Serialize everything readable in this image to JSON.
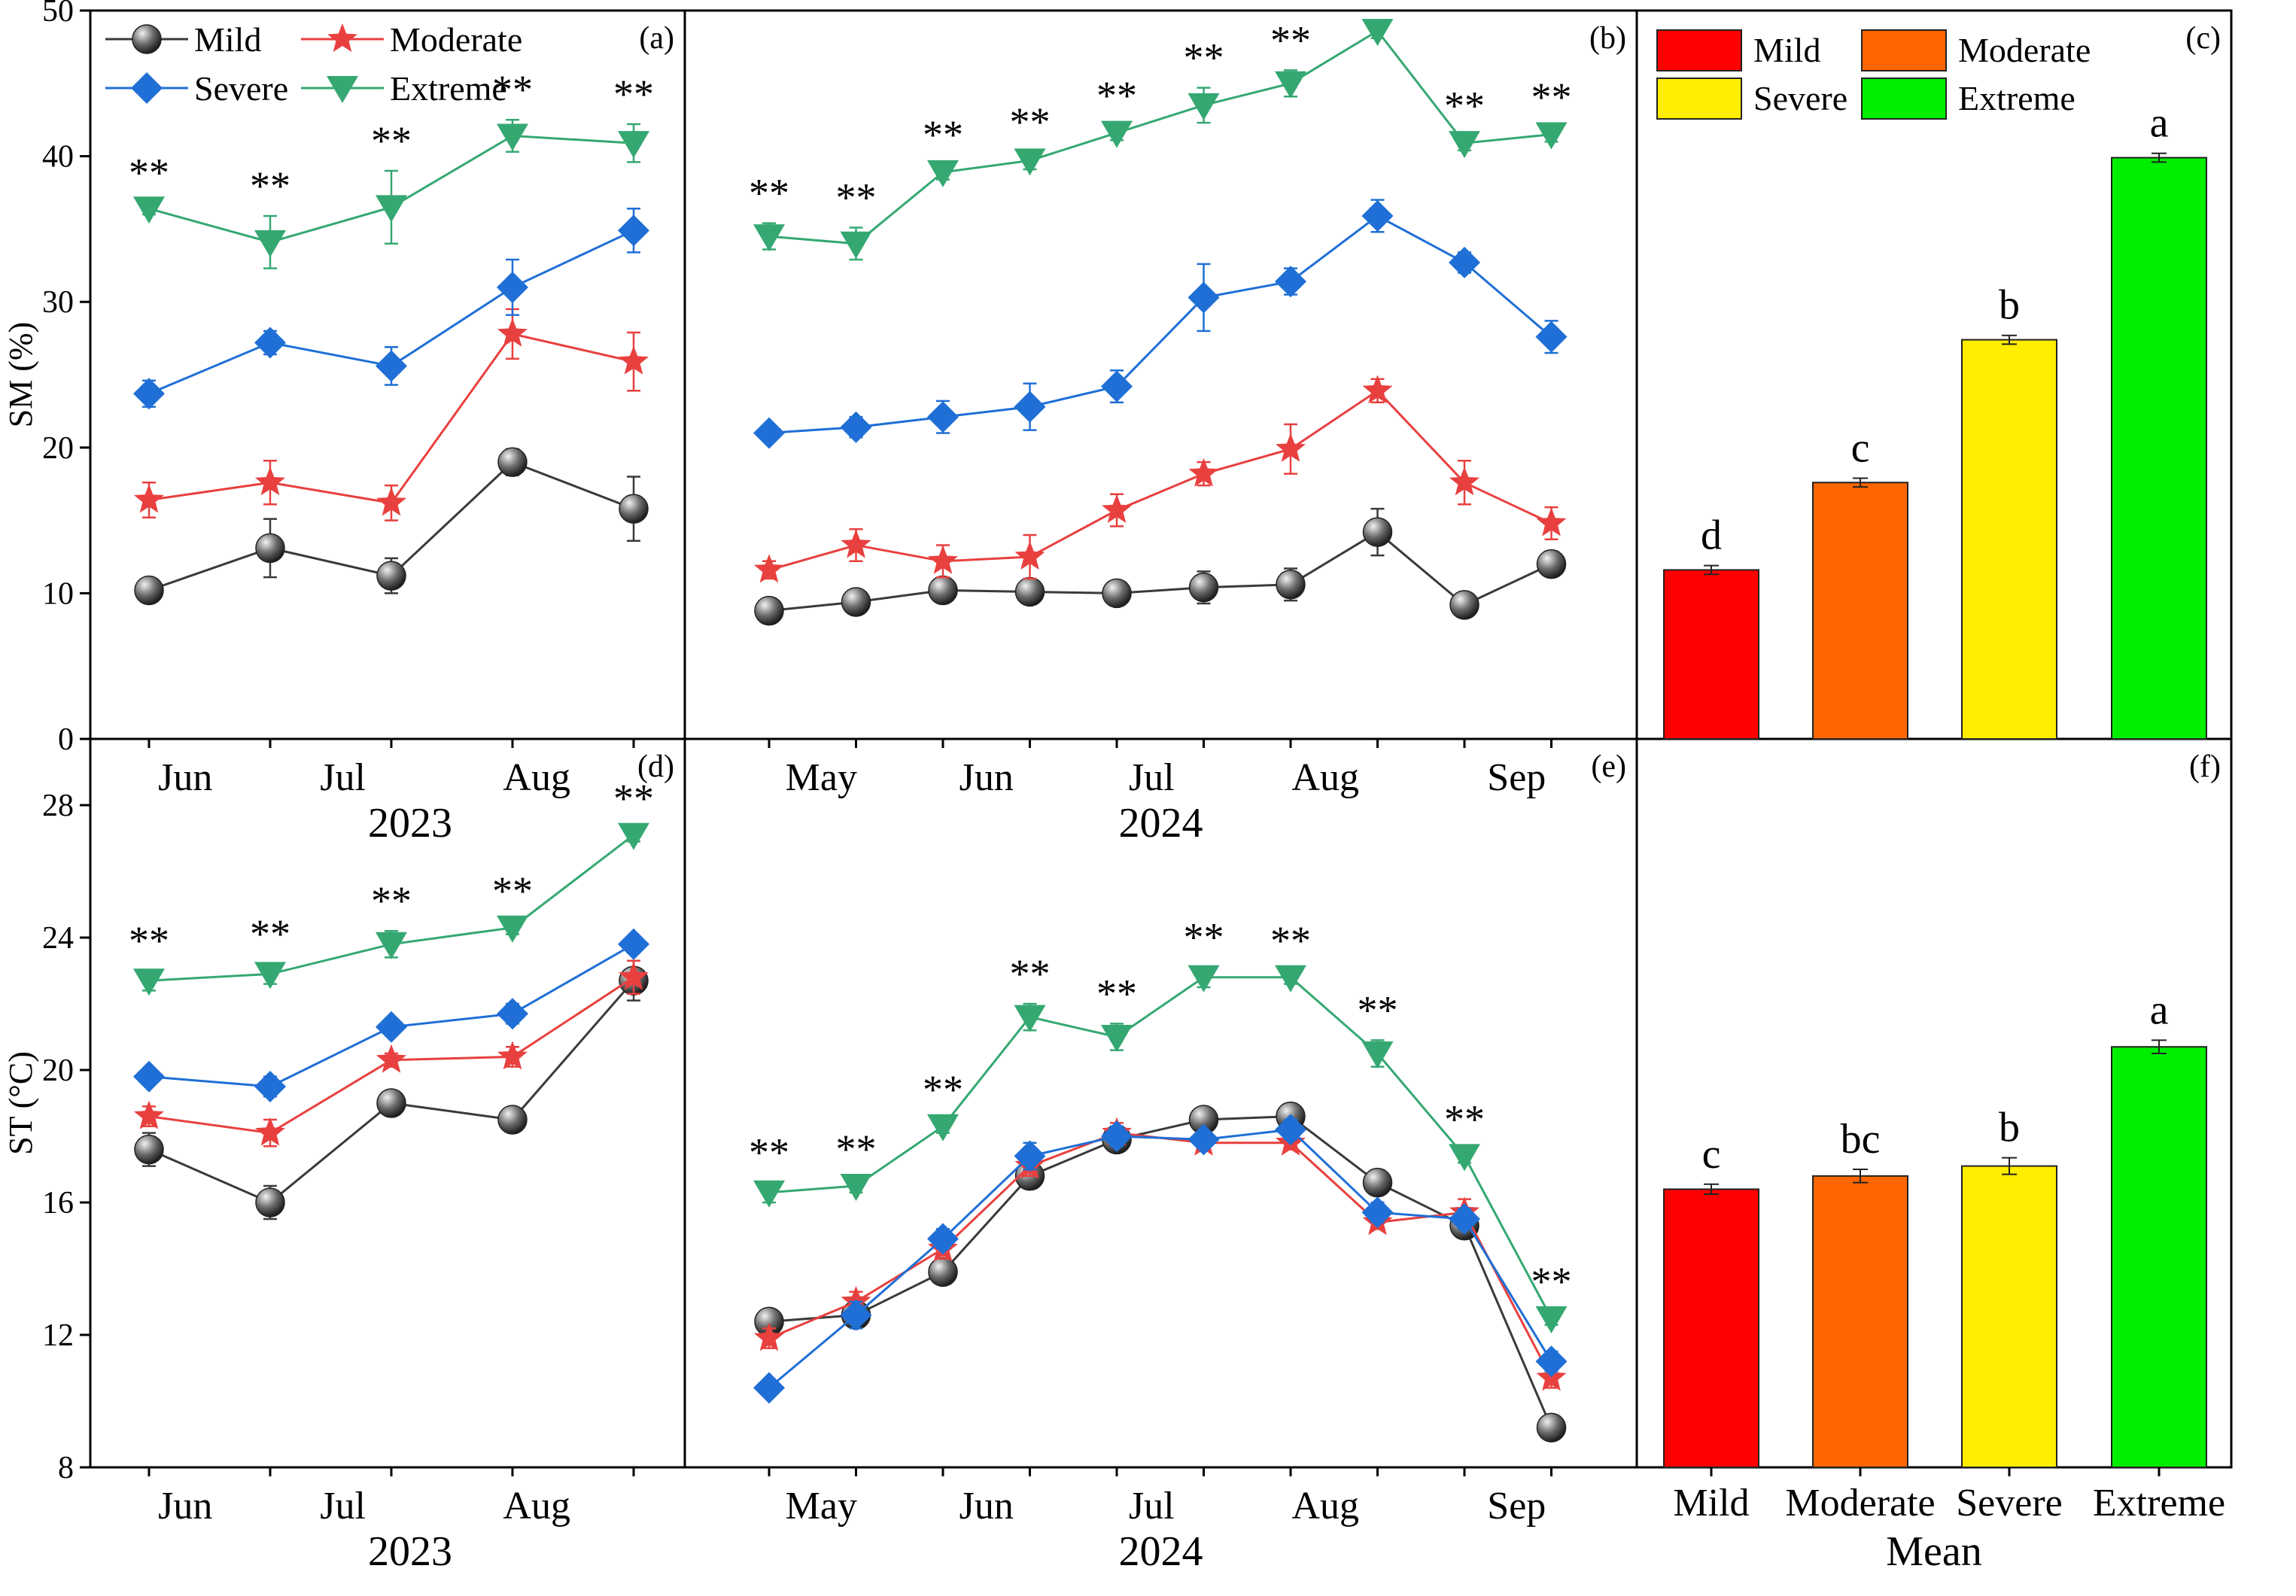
{
  "colors": {
    "mild": "#3a3a3a",
    "moderate": "#e8403f",
    "severe": "#1f6fd6",
    "extreme": "#35a872",
    "bar_mild": "#ff0000",
    "bar_moderate": "#ff6600",
    "bar_severe": "#ffee00",
    "bar_extreme": "#00ee00"
  },
  "legend_labels": {
    "mild": "Mild",
    "moderate": "Moderate",
    "severe": "Severe",
    "extreme": "Extreme"
  },
  "sig_mark": "**",
  "chart_data": [
    {
      "panel": "(a)",
      "type": "line",
      "ylabel": "SM (%)",
      "ylim": [
        0,
        50
      ],
      "yticks": [
        0,
        10,
        20,
        30,
        40,
        50
      ],
      "x": [
        0,
        1,
        2,
        3,
        4
      ],
      "month_ticks": [
        {
          "label": "Jun",
          "x": 0.3
        },
        {
          "label": "Jul",
          "x": 1.6
        },
        {
          "label": "Aug",
          "x": 3.2
        }
      ],
      "year_label": "2023",
      "significance": [
        "**",
        "**",
        "**",
        "**",
        "**"
      ],
      "series": [
        {
          "name": "Mild",
          "values": [
            10.2,
            13.1,
            11.2,
            19.0,
            15.8
          ],
          "err": [
            0.3,
            2.0,
            1.2,
            0.9,
            2.2
          ]
        },
        {
          "name": "Moderate",
          "values": [
            16.4,
            17.6,
            16.2,
            27.8,
            25.9
          ],
          "err": [
            1.2,
            1.5,
            1.2,
            1.7,
            2.0
          ]
        },
        {
          "name": "Severe",
          "values": [
            23.7,
            27.2,
            25.6,
            31.0,
            34.9
          ],
          "err": [
            0.9,
            0.8,
            1.3,
            1.9,
            1.5
          ]
        },
        {
          "name": "Extreme",
          "values": [
            36.4,
            34.1,
            36.5,
            41.4,
            40.9
          ],
          "err": [
            0.4,
            1.8,
            2.5,
            1.1,
            1.3
          ]
        }
      ]
    },
    {
      "panel": "(b)",
      "type": "line",
      "ylim": [
        0,
        50
      ],
      "x": [
        0,
        1,
        2,
        3,
        4,
        5,
        6,
        7,
        8,
        9
      ],
      "month_ticks": [
        {
          "label": "May",
          "x": 0.6
        },
        {
          "label": "Jun",
          "x": 2.5
        },
        {
          "label": "Jul",
          "x": 4.4
        },
        {
          "label": "Aug",
          "x": 6.4
        },
        {
          "label": "Sep",
          "x": 8.6
        }
      ],
      "year_label": "2024",
      "significance": [
        "**",
        "**",
        "**",
        "**",
        "**",
        "**",
        "**",
        "**",
        "**",
        "**"
      ],
      "series": [
        {
          "name": "Mild",
          "values": [
            8.8,
            9.4,
            10.2,
            10.1,
            10.0,
            10.4,
            10.6,
            14.2,
            9.2,
            12.0
          ],
          "err": [
            0.4,
            0.5,
            0.6,
            0.6,
            0.5,
            1.1,
            1.1,
            1.6,
            0.5,
            0.6
          ]
        },
        {
          "name": "Moderate",
          "values": [
            11.6,
            13.3,
            12.2,
            12.5,
            15.7,
            18.2,
            19.9,
            23.9,
            17.6,
            14.8
          ],
          "err": [
            0.6,
            1.1,
            1.1,
            1.5,
            1.1,
            0.8,
            1.7,
            0.8,
            1.5,
            1.1
          ]
        },
        {
          "name": "Severe",
          "values": [
            21.0,
            21.4,
            22.1,
            22.8,
            24.2,
            30.3,
            31.4,
            35.9,
            32.7,
            27.6
          ],
          "err": [
            0.5,
            0.7,
            1.1,
            1.6,
            1.1,
            2.3,
            0.9,
            1.1,
            0.7,
            1.1
          ]
        },
        {
          "name": "Extreme",
          "values": [
            34.5,
            34.0,
            38.9,
            39.7,
            41.6,
            43.5,
            45.0,
            48.6,
            40.9,
            41.5
          ],
          "err": [
            0.9,
            1.1,
            0.5,
            0.6,
            0.5,
            1.2,
            0.9,
            0.5,
            0.5,
            0.5
          ]
        }
      ]
    },
    {
      "panel": "(c)",
      "type": "bar",
      "categories": [
        "Mild",
        "Moderate",
        "Severe",
        "Extreme"
      ],
      "values": [
        11.6,
        17.6,
        27.4,
        39.9
      ],
      "err": [
        0.3,
        0.3,
        0.3,
        0.3
      ],
      "letters": [
        "d",
        "c",
        "b",
        "a"
      ],
      "ylim": [
        0,
        50
      ]
    },
    {
      "panel": "(d)",
      "type": "line",
      "ylabel": "ST (°C)",
      "ylim": [
        8,
        30
      ],
      "yticks": [
        8,
        12,
        16,
        20,
        24,
        28
      ],
      "x": [
        0,
        1,
        2,
        3,
        4
      ],
      "month_ticks": [
        {
          "label": "Jun",
          "x": 0.3
        },
        {
          "label": "Jul",
          "x": 1.6
        },
        {
          "label": "Aug",
          "x": 3.2
        }
      ],
      "year_label": "2023",
      "significance": [
        "**",
        "**",
        "**",
        "**",
        "**"
      ],
      "series": [
        {
          "name": "Mild",
          "values": [
            17.6,
            16.0,
            19.0,
            18.5,
            22.7
          ],
          "err": [
            0.5,
            0.5,
            0.3,
            0.2,
            0.6
          ]
        },
        {
          "name": "Moderate",
          "values": [
            18.6,
            18.1,
            20.3,
            20.4,
            22.8
          ],
          "err": [
            0.3,
            0.4,
            0.2,
            0.3,
            0.5
          ]
        },
        {
          "name": "Severe",
          "values": [
            19.8,
            19.5,
            21.3,
            21.7,
            23.8
          ],
          "err": [
            0.2,
            0.3,
            0.2,
            0.3,
            0.2
          ]
        },
        {
          "name": "Extreme",
          "values": [
            22.7,
            22.9,
            23.8,
            24.3,
            27.1
          ],
          "err": [
            0.3,
            0.3,
            0.4,
            0.2,
            0.2
          ]
        }
      ]
    },
    {
      "panel": "(e)",
      "type": "line",
      "ylim": [
        8,
        30
      ],
      "x": [
        0,
        1,
        2,
        3,
        4,
        5,
        6,
        7,
        8,
        9
      ],
      "month_ticks": [
        {
          "label": "May",
          "x": 0.6
        },
        {
          "label": "Jun",
          "x": 2.5
        },
        {
          "label": "Jul",
          "x": 4.4
        },
        {
          "label": "Aug",
          "x": 6.4
        },
        {
          "label": "Sep",
          "x": 8.6
        }
      ],
      "year_label": "2024",
      "significance": [
        "**",
        "**",
        "**",
        "**",
        "**",
        "**",
        "**",
        "**",
        "**",
        "**"
      ],
      "series": [
        {
          "name": "Mild",
          "values": [
            12.4,
            12.6,
            13.9,
            16.8,
            17.9,
            18.5,
            18.6,
            16.6,
            15.3,
            9.2
          ],
          "err": [
            0.3,
            0.3,
            0.2,
            0.2,
            0.2,
            0.2,
            0.2,
            0.2,
            0.3,
            0.2
          ]
        },
        {
          "name": "Moderate",
          "values": [
            11.9,
            13.0,
            14.6,
            17.1,
            18.1,
            17.8,
            17.8,
            15.4,
            15.7,
            10.7
          ],
          "err": [
            0.3,
            0.3,
            0.3,
            0.3,
            0.3,
            0.2,
            0.2,
            0.2,
            0.4,
            0.3
          ]
        },
        {
          "name": "Severe",
          "values": [
            10.4,
            12.6,
            14.9,
            17.4,
            18.0,
            17.9,
            18.2,
            15.7,
            15.5,
            11.2
          ],
          "err": [
            0.2,
            0.4,
            0.3,
            0.4,
            0.3,
            0.2,
            0.3,
            0.3,
            0.3,
            0.3
          ]
        },
        {
          "name": "Extreme",
          "values": [
            16.3,
            16.5,
            18.3,
            21.6,
            21.0,
            22.8,
            22.8,
            20.5,
            17.4,
            12.5
          ],
          "err": [
            0.3,
            0.2,
            0.2,
            0.4,
            0.4,
            0.3,
            0.2,
            0.4,
            0.2,
            0.2
          ]
        }
      ]
    },
    {
      "panel": "(f)",
      "type": "bar",
      "categories": [
        "Mild",
        "Moderate",
        "Severe",
        "Extreme"
      ],
      "values": [
        16.4,
        16.8,
        17.1,
        20.7
      ],
      "err": [
        0.15,
        0.2,
        0.25,
        0.2
      ],
      "letters": [
        "c",
        "bc",
        "b",
        "a"
      ],
      "ylim": [
        8,
        30
      ],
      "xlabel": "Mean"
    }
  ]
}
